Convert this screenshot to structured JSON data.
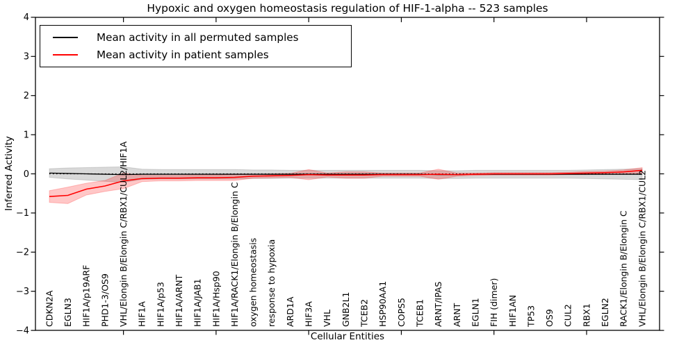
{
  "chart_data": {
    "type": "line",
    "title": "Hypoxic and oxygen homeostasis regulation of HIF-1-alpha -- 523 samples",
    "xlabel": "Cellular Entities",
    "ylabel": "Inferred Activity",
    "ylim": [
      -4,
      4
    ],
    "yticks": [
      4,
      3,
      2,
      1,
      0,
      -1,
      -2,
      -3,
      -4
    ],
    "x_major_tick_positions": [
      5,
      10,
      15,
      20,
      25,
      30
    ],
    "grid": false,
    "legend_position": "upper left",
    "zero_line": "dotted",
    "categories": [
      "CDKN2A",
      "EGLN3",
      "HIF1A/p19ARF",
      "PHD1-3/OS9",
      "VHL/Elongin B/Elongin C/RBX1/CUL2/HIF1A",
      "HIF1A",
      "HIF1A/p53",
      "HIF1A/ARNT",
      "HIF1A/JAB1",
      "HIF1A/Hsp90",
      "HIF1A/RACK1/Elongin B/Elongin C",
      "oxygen homeostasis",
      "response to hypoxia",
      "ARD1A",
      "HIF3A",
      "VHL",
      "GNB2L1",
      "TCEB2",
      "HSP90AA1",
      "COPS5",
      "TCEB1",
      "ARNT/IPAS",
      "ARNT",
      "EGLN1",
      "FIH (dimer)",
      "HIF1AN",
      "TP53",
      "OS9",
      "CUL2",
      "RBX1",
      "EGLN2",
      "RACK1/Elongin B/Elongin C",
      "VHL/Elongin B/Elongin C/RBX1/CUL2"
    ],
    "series": [
      {
        "name": "Mean activity in all permuted samples",
        "color": "#000000",
        "band_fill": "rgba(130,130,130,0.30)",
        "values": [
          0.02,
          0.01,
          0.0,
          -0.01,
          -0.02,
          -0.01,
          -0.01,
          -0.01,
          -0.01,
          -0.01,
          -0.01,
          -0.01,
          -0.01,
          -0.01,
          -0.01,
          -0.01,
          -0.01,
          -0.01,
          -0.01,
          -0.01,
          -0.01,
          -0.02,
          -0.02,
          -0.01,
          -0.01,
          -0.01,
          -0.01,
          -0.01,
          -0.01,
          -0.01,
          -0.01,
          -0.01,
          -0.01
        ],
        "band_upper": [
          0.13,
          0.15,
          0.16,
          0.17,
          0.18,
          0.12,
          0.11,
          0.11,
          0.11,
          0.11,
          0.11,
          0.1,
          0.1,
          0.09,
          0.09,
          0.09,
          0.09,
          0.09,
          0.09,
          0.09,
          0.09,
          0.08,
          0.08,
          0.09,
          0.09,
          0.09,
          0.09,
          0.09,
          0.09,
          0.1,
          0.11,
          0.12,
          0.13
        ],
        "band_lower": [
          -0.09,
          -0.13,
          -0.16,
          -0.19,
          -0.22,
          -0.14,
          -0.13,
          -0.13,
          -0.13,
          -0.13,
          -0.13,
          -0.12,
          -0.12,
          -0.11,
          -0.11,
          -0.11,
          -0.11,
          -0.11,
          -0.11,
          -0.11,
          -0.11,
          -0.12,
          -0.12,
          -0.11,
          -0.11,
          -0.11,
          -0.11,
          -0.11,
          -0.11,
          -0.12,
          -0.13,
          -0.14,
          -0.15
        ]
      },
      {
        "name": "Mean activity in patient samples",
        "color": "#ff0000",
        "band_fill": "rgba(255,0,0,0.22)",
        "values": [
          -0.58,
          -0.55,
          -0.39,
          -0.31,
          -0.18,
          -0.12,
          -0.11,
          -0.11,
          -0.1,
          -0.1,
          -0.09,
          -0.06,
          -0.05,
          -0.04,
          -0.02,
          -0.03,
          -0.03,
          -0.03,
          -0.02,
          -0.02,
          -0.02,
          -0.01,
          -0.02,
          -0.01,
          0.0,
          0.0,
          0.0,
          0.0,
          0.01,
          0.02,
          0.03,
          0.05,
          0.09
        ],
        "band_upper": [
          -0.43,
          -0.34,
          -0.24,
          -0.17,
          0.02,
          -0.04,
          -0.04,
          -0.04,
          -0.03,
          -0.03,
          -0.01,
          -0.01,
          0.0,
          0.01,
          0.11,
          0.02,
          0.05,
          0.05,
          0.02,
          0.02,
          0.02,
          0.12,
          0.02,
          0.02,
          0.03,
          0.03,
          0.03,
          0.03,
          0.04,
          0.06,
          0.07,
          0.1,
          0.16
        ],
        "band_lower": [
          -0.73,
          -0.76,
          -0.54,
          -0.45,
          -0.38,
          -0.2,
          -0.18,
          -0.18,
          -0.17,
          -0.17,
          -0.17,
          -0.11,
          -0.1,
          -0.09,
          -0.15,
          -0.08,
          -0.11,
          -0.11,
          -0.06,
          -0.06,
          -0.06,
          -0.14,
          -0.06,
          -0.04,
          -0.03,
          -0.03,
          -0.03,
          -0.03,
          -0.02,
          -0.02,
          -0.01,
          0.0,
          0.02
        ]
      }
    ]
  }
}
